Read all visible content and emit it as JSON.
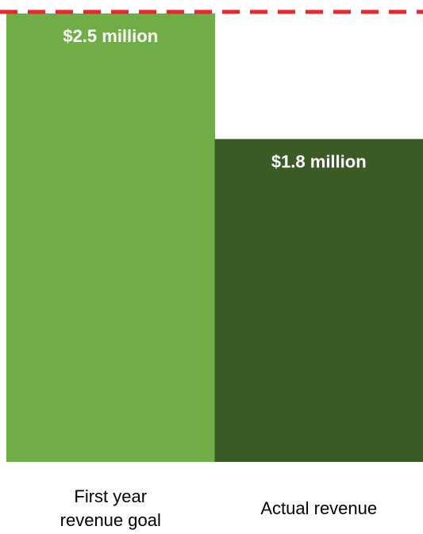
{
  "chart_data": {
    "type": "bar",
    "categories": [
      "First year revenue goal",
      "Actual revenue"
    ],
    "category_label_lines": [
      [
        "First year",
        "revenue goal"
      ],
      [
        "Actual revenue"
      ]
    ],
    "values": [
      2.5,
      1.8
    ],
    "data_labels": [
      "$2.5 million",
      "$1.8 million"
    ],
    "bar_colors": [
      "#70ad47",
      "#3a5a26"
    ],
    "reference_line": {
      "value": 2.5,
      "color": "#e8262b",
      "style": "dashed"
    },
    "title": "",
    "xlabel": "",
    "ylabel": "",
    "ylim": [
      0,
      2.5
    ],
    "grid": false,
    "legend": false
  }
}
